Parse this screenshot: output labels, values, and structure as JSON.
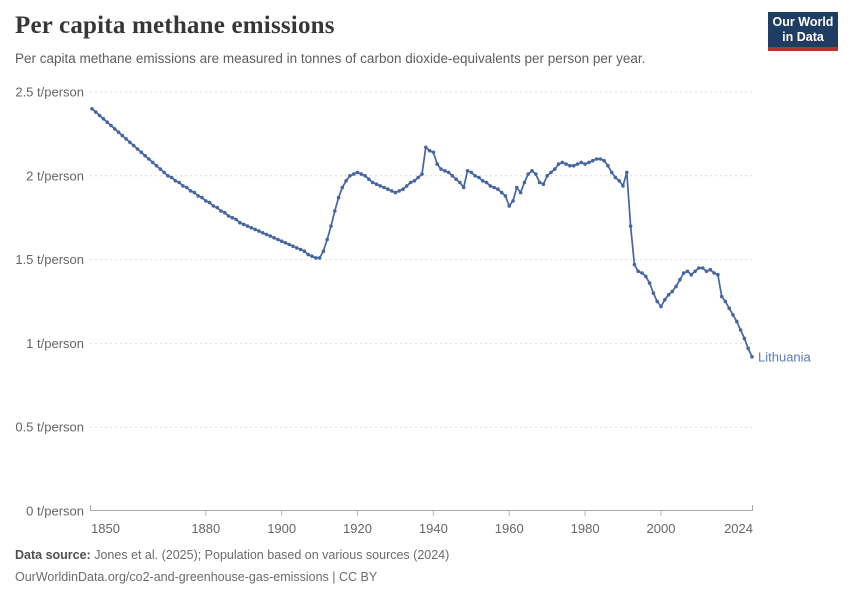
{
  "header": {
    "title": "Per capita methane emissions",
    "subtitle": "Per capita methane emissions are measured in tonnes of carbon dioxide-equivalents per person per year.",
    "logo": {
      "line1": "Our World",
      "line2": "in Data",
      "bg_color": "#1d3d63",
      "accent_color": "#b5342c"
    }
  },
  "chart_data": {
    "type": "line",
    "title": "Per capita methane emissions",
    "unit": "t/person",
    "grid": "dashed-horizontal-gridlines",
    "legend_position": "end-of-line-label",
    "xlim": [
      1850,
      2024
    ],
    "ylim": [
      0,
      2.5
    ],
    "x_tick_labels": [
      "1850",
      "1880",
      "1900",
      "1920",
      "1940",
      "1960",
      "1980",
      "2000",
      "2024"
    ],
    "x_tick_years": [
      1850,
      1880,
      1900,
      1920,
      1940,
      1960,
      1980,
      2000,
      2024
    ],
    "y_tick_labels": [
      "0 t/person",
      "0.5 t/person",
      "1 t/person",
      "1.5 t/person",
      "2 t/person",
      "2.5 t/person"
    ],
    "y_tick_values": [
      0,
      0.5,
      1,
      1.5,
      2,
      2.5
    ],
    "series": [
      {
        "name": "Lithuania",
        "color": "#4565a3",
        "end_label": "Lithuania",
        "end_label_color": "#5d79b5",
        "years": [
          1850,
          1851,
          1852,
          1853,
          1854,
          1855,
          1856,
          1857,
          1858,
          1859,
          1860,
          1861,
          1862,
          1863,
          1864,
          1865,
          1866,
          1867,
          1868,
          1869,
          1870,
          1871,
          1872,
          1873,
          1874,
          1875,
          1876,
          1877,
          1878,
          1879,
          1880,
          1881,
          1882,
          1883,
          1884,
          1885,
          1886,
          1887,
          1888,
          1889,
          1890,
          1891,
          1892,
          1893,
          1894,
          1895,
          1896,
          1897,
          1898,
          1899,
          1900,
          1901,
          1902,
          1903,
          1904,
          1905,
          1906,
          1907,
          1908,
          1909,
          1910,
          1911,
          1912,
          1913,
          1914,
          1915,
          1916,
          1917,
          1918,
          1919,
          1920,
          1921,
          1922,
          1923,
          1924,
          1925,
          1926,
          1927,
          1928,
          1929,
          1930,
          1931,
          1932,
          1933,
          1934,
          1935,
          1936,
          1937,
          1938,
          1939,
          1940,
          1941,
          1942,
          1943,
          1944,
          1945,
          1946,
          1947,
          1948,
          1949,
          1950,
          1951,
          1952,
          1953,
          1954,
          1955,
          1956,
          1957,
          1958,
          1959,
          1960,
          1961,
          1962,
          1963,
          1964,
          1965,
          1966,
          1967,
          1968,
          1969,
          1970,
          1971,
          1972,
          1973,
          1974,
          1975,
          1976,
          1977,
          1978,
          1979,
          1980,
          1981,
          1982,
          1983,
          1984,
          1985,
          1986,
          1987,
          1988,
          1989,
          1990,
          1991,
          1992,
          1993,
          1994,
          1995,
          1996,
          1997,
          1998,
          1999,
          2000,
          2001,
          2002,
          2003,
          2004,
          2005,
          2006,
          2007,
          2008,
          2009,
          2010,
          2011,
          2012,
          2013,
          2014,
          2015,
          2016,
          2017,
          2018,
          2019,
          2020,
          2021,
          2022,
          2023,
          2024
        ],
        "values": [
          2.4,
          2.38,
          2.36,
          2.34,
          2.32,
          2.3,
          2.28,
          2.26,
          2.24,
          2.22,
          2.2,
          2.18,
          2.16,
          2.14,
          2.12,
          2.1,
          2.08,
          2.06,
          2.04,
          2.02,
          2.0,
          1.99,
          1.97,
          1.96,
          1.94,
          1.93,
          1.91,
          1.9,
          1.88,
          1.87,
          1.85,
          1.84,
          1.82,
          1.81,
          1.79,
          1.78,
          1.76,
          1.75,
          1.74,
          1.72,
          1.71,
          1.7,
          1.69,
          1.68,
          1.67,
          1.66,
          1.65,
          1.64,
          1.63,
          1.62,
          1.61,
          1.6,
          1.59,
          1.58,
          1.57,
          1.56,
          1.55,
          1.53,
          1.52,
          1.51,
          1.51,
          1.55,
          1.62,
          1.7,
          1.79,
          1.87,
          1.93,
          1.97,
          2.0,
          2.01,
          2.02,
          2.01,
          2.0,
          1.98,
          1.96,
          1.95,
          1.94,
          1.93,
          1.92,
          1.91,
          1.9,
          1.91,
          1.92,
          1.94,
          1.96,
          1.97,
          1.99,
          2.01,
          2.17,
          2.15,
          2.14,
          2.07,
          2.04,
          2.03,
          2.02,
          2.0,
          1.98,
          1.96,
          1.93,
          2.03,
          2.02,
          2.0,
          1.99,
          1.97,
          1.96,
          1.94,
          1.93,
          1.92,
          1.9,
          1.88,
          1.82,
          1.85,
          1.93,
          1.9,
          1.96,
          2.01,
          2.03,
          2.01,
          1.96,
          1.95,
          2.0,
          2.02,
          2.04,
          2.07,
          2.08,
          2.07,
          2.06,
          2.06,
          2.07,
          2.08,
          2.07,
          2.08,
          2.09,
          2.1,
          2.1,
          2.09,
          2.06,
          2.02,
          1.99,
          1.97,
          1.94,
          2.02,
          1.7,
          1.47,
          1.43,
          1.42,
          1.4,
          1.36,
          1.3,
          1.25,
          1.22,
          1.26,
          1.29,
          1.31,
          1.34,
          1.38,
          1.42,
          1.43,
          1.41,
          1.43,
          1.45,
          1.45,
          1.43,
          1.44,
          1.42,
          1.41,
          1.28,
          1.25,
          1.21,
          1.17,
          1.13,
          1.08,
          1.03,
          0.97,
          0.92
        ]
      }
    ],
    "colors": {
      "gridline": "#dcdcdc",
      "axis": "#a8a8a8",
      "tick": "#b8b8b8",
      "tick_text": "#666666"
    }
  },
  "footer": {
    "sources_label": "Data source:",
    "sources_text": " Jones et al. (2025); Population based on various sources (2024)",
    "attribution": "OurWorldinData.org/co2-and-greenhouse-gas-emissions | CC BY"
  }
}
